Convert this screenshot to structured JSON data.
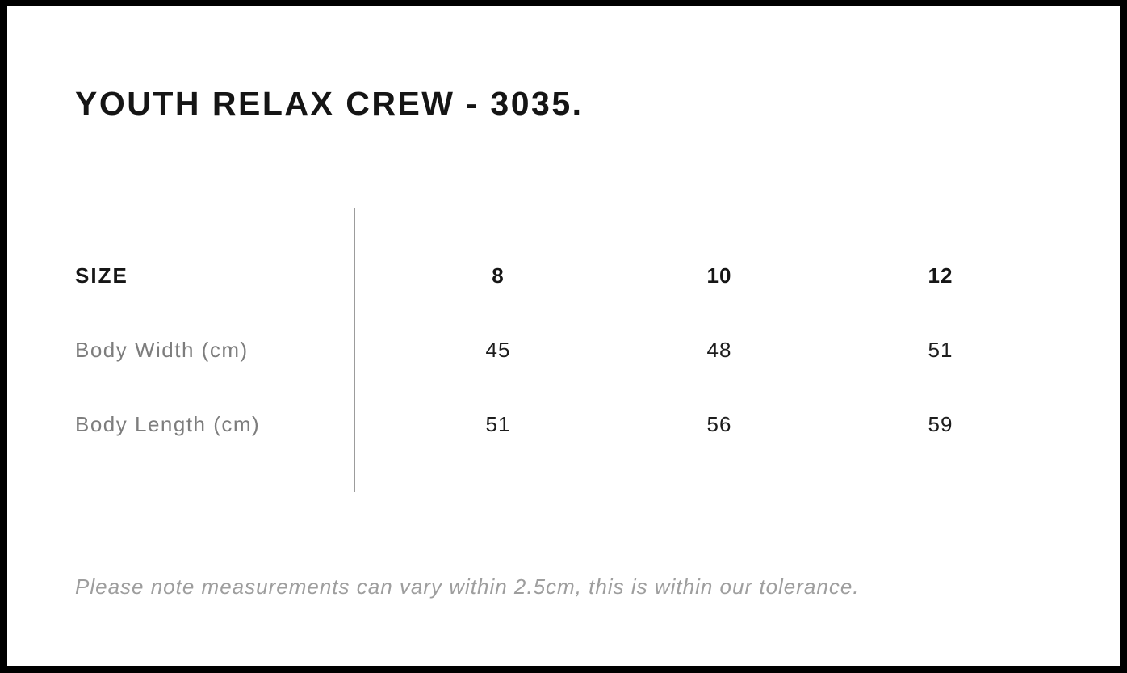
{
  "chart_data": {
    "type": "table",
    "title": "YOUTH RELAX CREW - 3035.",
    "columns": [
      "SIZE",
      "8",
      "10",
      "12"
    ],
    "rows": [
      [
        "Body Width (cm)",
        45,
        48,
        51
      ],
      [
        "Body Length (cm)",
        51,
        56,
        59
      ]
    ],
    "note": "Please note measurements can vary within 2.5cm, this is within our tolerance."
  },
  "colors": {
    "frame": "#000000",
    "panel_background": "#ffffff",
    "title_text": "#151515",
    "header_text": "#161616",
    "value_text": "#1d1d1d",
    "row_label_text": "#7d7d7d",
    "note_text": "#9e9e9e",
    "divider_line": "#9c9c9c"
  }
}
